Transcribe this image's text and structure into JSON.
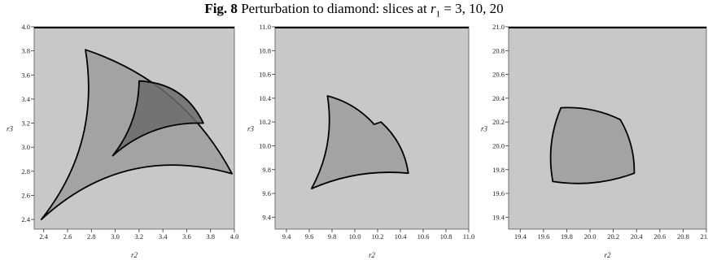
{
  "caption": {
    "fig_label": "Fig. 8",
    "text_before": "Perturbation to diamond: slices at ",
    "var": "r",
    "sub": "1",
    "text_after": " = 3, 10, 20"
  },
  "colors": {
    "background": "#c8c8c8",
    "region_light": "#a3a3a3",
    "region_dark": "#6b6b6b",
    "outline": "#000000"
  },
  "chart_data": [
    {
      "type": "area",
      "slice": "r1 = 3",
      "xlabel": "r2",
      "ylabel": "r3",
      "xlim": [
        2.32,
        4.0
      ],
      "ylim": [
        2.32,
        4.0
      ],
      "xticks": [
        "2.4",
        "2.6",
        "2.8",
        "3.0",
        "3.2",
        "3.4",
        "3.6",
        "3.8",
        "4.0"
      ],
      "yticks": [
        "2.4",
        "2.6",
        "2.8",
        "3.0",
        "3.2",
        "3.4",
        "3.6",
        "3.8",
        "4.0"
      ],
      "regions": [
        {
          "shade": "light",
          "vertices": [
            [
              2.75,
              3.81
            ],
            [
              3.98,
              2.78
            ],
            [
              2.38,
              2.4
            ]
          ],
          "sides": [
            {
              "from": 0,
              "to": 1,
              "bulge": 0.2
            },
            {
              "from": 1,
              "to": 2,
              "bulge": -0.28
            },
            {
              "from": 2,
              "to": 0,
              "bulge": -0.22
            }
          ]
        },
        {
          "shade": "dark",
          "vertices": [
            [
              3.2,
              3.55
            ],
            [
              3.74,
              3.2
            ],
            [
              2.98,
              2.93
            ]
          ],
          "sides": [
            {
              "from": 0,
              "to": 1,
              "bulge": 0.3
            },
            {
              "from": 1,
              "to": 2,
              "bulge": -0.2
            },
            {
              "from": 2,
              "to": 0,
              "bulge": -0.17
            }
          ]
        }
      ]
    },
    {
      "type": "area",
      "slice": "r1 = 10",
      "xlabel": "r2",
      "ylabel": "r3",
      "xlim": [
        9.3,
        11.0
      ],
      "ylim": [
        9.3,
        11.0
      ],
      "xticks": [
        "9.4",
        "9.6",
        "9.8",
        "10.0",
        "10.2",
        "10.4",
        "10.6",
        "10.8",
        "11.0"
      ],
      "yticks": [
        "9.4",
        "9.6",
        "9.8",
        "10.0",
        "10.2",
        "10.4",
        "10.6",
        "10.8",
        "11.0"
      ],
      "regions": [
        {
          "shade": "light",
          "vertices": [
            [
              9.76,
              10.42
            ],
            [
              10.17,
              10.18
            ],
            [
              10.23,
              10.2
            ],
            [
              10.47,
              9.77
            ],
            [
              9.62,
              9.64
            ]
          ],
          "sides": [
            {
              "from": 0,
              "to": 1,
              "bulge": 0.15
            },
            {
              "from": 1,
              "to": 2,
              "bulge": 0
            },
            {
              "from": 2,
              "to": 3,
              "bulge": 0.18
            },
            {
              "from": 3,
              "to": 4,
              "bulge": -0.13
            },
            {
              "from": 4,
              "to": 0,
              "bulge": -0.17
            }
          ]
        }
      ]
    },
    {
      "type": "area",
      "slice": "r1 = 20",
      "xlabel": "r2",
      "ylabel": "r3",
      "xlim": [
        19.3,
        21.0
      ],
      "ylim": [
        19.3,
        21.0
      ],
      "xticks": [
        "19.4",
        "19.6",
        "19.8",
        "20.0",
        "20.2",
        "20.4",
        "20.6",
        "20.8",
        "21.0"
      ],
      "yticks": [
        "19.4",
        "19.6",
        "19.8",
        "20.0",
        "20.2",
        "20.4",
        "20.6",
        "20.8",
        "21.0"
      ],
      "regions": [
        {
          "shade": "light",
          "vertices": [
            [
              19.75,
              20.32
            ],
            [
              20.26,
              20.22
            ],
            [
              20.38,
              19.77
            ],
            [
              19.68,
              19.7
            ]
          ],
          "sides": [
            {
              "from": 0,
              "to": 1,
              "bulge": 0.13
            },
            {
              "from": 1,
              "to": 2,
              "bulge": 0.14
            },
            {
              "from": 2,
              "to": 3,
              "bulge": 0.13
            },
            {
              "from": 3,
              "to": 0,
              "bulge": 0.15
            }
          ]
        }
      ]
    }
  ]
}
